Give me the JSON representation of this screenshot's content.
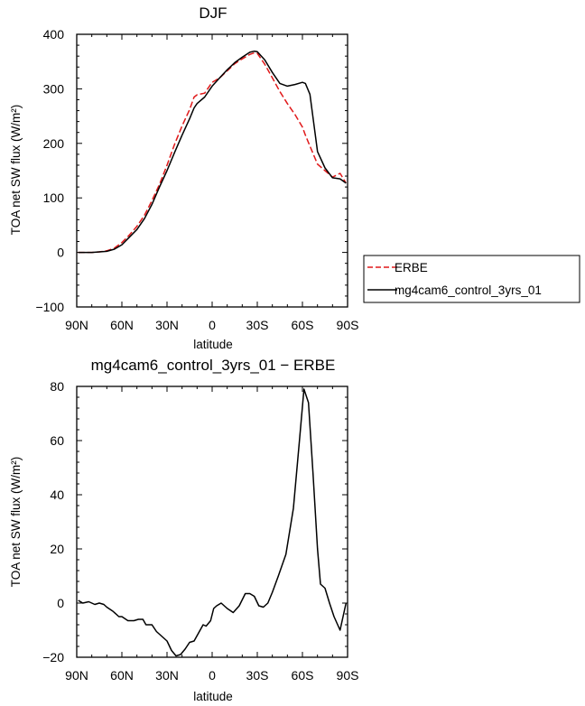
{
  "chart_data": [
    {
      "type": "line",
      "title": "DJF",
      "xlabel": "latitude",
      "ylabel": "TOA net SW flux (W/m²)",
      "xlim": [
        90,
        -90
      ],
      "ylim": [
        -100,
        400
      ],
      "yticks": [
        -100,
        0,
        100,
        200,
        300,
        400
      ],
      "ytick_labels": [
        "−100",
        "0",
        "100",
        "200",
        "300",
        "400"
      ],
      "xticks": [
        90,
        60,
        30,
        0,
        -30,
        -60,
        -90
      ],
      "xtick_labels": [
        "90N",
        "60N",
        "30N",
        "0",
        "30S",
        "60S",
        "90S"
      ],
      "legend_position": "right",
      "series": [
        {
          "name": "ERBE",
          "color": "#e0191a",
          "dash": "dashed",
          "x": [
            89,
            85,
            80,
            75,
            70,
            65,
            60,
            55,
            50,
            45,
            40,
            35,
            30,
            25,
            20,
            15,
            12,
            10,
            5,
            0,
            -5,
            -10,
            -15,
            -20,
            -25,
            -28,
            -30,
            -35,
            -40,
            -45,
            -50,
            -55,
            -60,
            -62,
            -65,
            -70,
            -75,
            -80,
            -85,
            -89
          ],
          "y": [
            0,
            0,
            0,
            1,
            3,
            8,
            18,
            32,
            48,
            68,
            95,
            125,
            160,
            198,
            232,
            262,
            285,
            289,
            292,
            312,
            320,
            333,
            346,
            355,
            363,
            366,
            365,
            345,
            320,
            295,
            273,
            253,
            230,
            215,
            195,
            162,
            150,
            138,
            145,
            127
          ]
        },
        {
          "name": "mg4cam6_control_3yrs_01",
          "color": "#000000",
          "dash": "solid",
          "x": [
            89,
            85,
            80,
            75,
            70,
            65,
            60,
            55,
            50,
            45,
            40,
            35,
            30,
            25,
            20,
            15,
            12,
            10,
            5,
            0,
            -5,
            -10,
            -15,
            -20,
            -25,
            -28,
            -30,
            -35,
            -40,
            -45,
            -50,
            -55,
            -60,
            -62,
            -65,
            -70,
            -75,
            -80,
            -85,
            -89
          ],
          "y": [
            0,
            0,
            0,
            1,
            2,
            6,
            14,
            28,
            42,
            62,
            88,
            120,
            150,
            183,
            215,
            245,
            265,
            273,
            285,
            305,
            320,
            335,
            348,
            358,
            367,
            369,
            368,
            353,
            330,
            310,
            305,
            308,
            312,
            310,
            290,
            185,
            155,
            137,
            135,
            127
          ]
        }
      ]
    },
    {
      "type": "line",
      "title": "mg4cam6_control_3yrs_01 − ERBE",
      "xlabel": "latitude",
      "ylabel": "TOA net SW flux (W/m²)",
      "xlim": [
        90,
        -90
      ],
      "ylim": [
        -20,
        80
      ],
      "yticks": [
        -20,
        0,
        20,
        40,
        60,
        80
      ],
      "ytick_labels": [
        "−20",
        "0",
        "20",
        "40",
        "60",
        "80"
      ],
      "xticks": [
        90,
        60,
        30,
        0,
        -30,
        -60,
        -90
      ],
      "xtick_labels": [
        "90N",
        "60N",
        "30N",
        "0",
        "30S",
        "60S",
        "90S"
      ],
      "series": [
        {
          "name": "",
          "color": "#000000",
          "dash": "solid",
          "x": [
            89,
            86,
            82,
            78,
            75,
            72,
            70,
            66,
            62,
            60,
            56,
            52,
            49,
            46,
            44,
            40,
            37,
            33,
            30,
            27,
            24,
            21,
            18,
            15,
            12,
            9,
            6,
            4,
            1,
            -1,
            -3,
            -6,
            -10,
            -14,
            -18,
            -22,
            -25,
            -28,
            -31,
            -34,
            -37,
            -40,
            -44,
            -49,
            -54,
            -58,
            -61,
            -64,
            -67,
            -70,
            -72,
            -75,
            -78,
            -81,
            -85,
            -87,
            -89
          ],
          "y": [
            1,
            0,
            0.5,
            -0.5,
            0,
            -0.5,
            -1.5,
            -3,
            -5,
            -5,
            -6.5,
            -6.5,
            -6,
            -6,
            -8,
            -8,
            -10.5,
            -12.5,
            -14,
            -17.5,
            -19.5,
            -19,
            -17,
            -14.5,
            -14,
            -11,
            -8,
            -8.5,
            -6.5,
            -2,
            -1,
            0,
            -2,
            -3.5,
            -1,
            3.5,
            3.5,
            2.5,
            -1,
            -1.5,
            0,
            4,
            10,
            18,
            35,
            60,
            79,
            74,
            48,
            20,
            7,
            5.5,
            0,
            -5,
            -10,
            -5,
            0
          ]
        }
      ]
    }
  ]
}
